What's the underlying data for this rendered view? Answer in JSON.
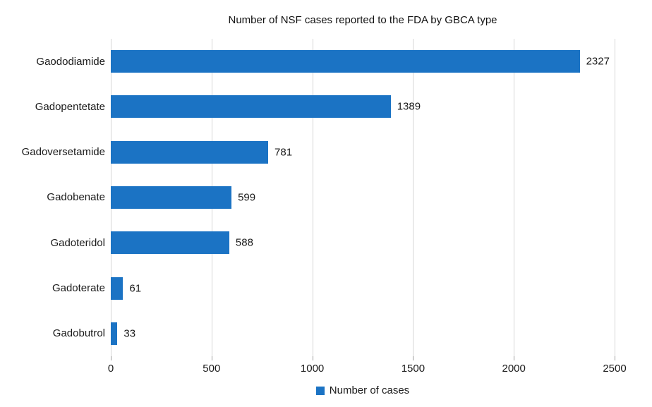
{
  "title": "Number of NSF cases reported to the FDA by GBCA type",
  "legend": {
    "label": "Number of cases"
  },
  "colors": {
    "bar": "#1b73c4",
    "gridline": "#d6d6d6",
    "tick": "#9e9e9e",
    "text": "#1a1a1a",
    "background": "#ffffff"
  },
  "chart_data": {
    "type": "bar",
    "orientation": "horizontal",
    "title": "Number of NSF cases reported to the FDA by GBCA type",
    "categories": [
      "Gaododiamide",
      "Gadopentetate",
      "Gadoversetamide",
      "Gadobenate",
      "Gadoteridol",
      "Gadoterate",
      "Gadobutrol"
    ],
    "values": [
      2327,
      1389,
      781,
      599,
      588,
      61,
      33
    ],
    "series_name": "Number of cases",
    "xlabel": "",
    "ylabel": "",
    "xlim": [
      0,
      2500
    ],
    "x_ticks": [
      0,
      500,
      1000,
      1500,
      2000,
      2500
    ],
    "grid": "vertical",
    "value_labels": true,
    "legend_position": "bottom"
  }
}
